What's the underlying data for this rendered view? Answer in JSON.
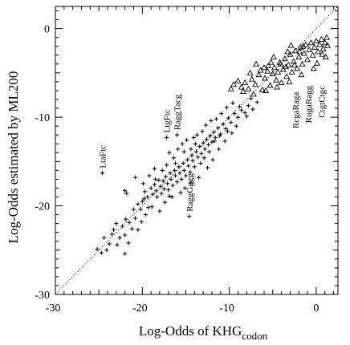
{
  "chart_data": {
    "type": "scatter",
    "xlabel": "Log-Odds of KHG",
    "xlabel_sub": "codon",
    "ylabel": "Log-Odds estimated by ML200",
    "xlim": [
      -30,
      2.5
    ],
    "ylim": [
      -30,
      2.5
    ],
    "x_major_ticks": [
      -30,
      -20,
      -10,
      0
    ],
    "y_major_ticks": [
      -30,
      -20,
      -10,
      0
    ],
    "x_tick_labels": [
      "-30",
      "-20",
      "-10",
      "0"
    ],
    "y_tick_labels": [
      "-30",
      "-20",
      "-10",
      "0"
    ],
    "grid": false,
    "reference_line": {
      "style": "dotted",
      "x": [
        -30,
        2.5
      ],
      "y": [
        -30,
        2.5
      ]
    },
    "annotations": [
      {
        "text": "LtaFtc",
        "x": -24.6,
        "y": -16.3
      },
      {
        "text": "LtgFtc",
        "x": -17.2,
        "y": -12.3
      },
      {
        "text": "RaggTacg",
        "x": -16.0,
        "y": -12.0
      },
      {
        "text": "RaggGggg",
        "x": -14.6,
        "y": -21.2
      },
      {
        "text": "RcgaRaga",
        "x": -2.4,
        "y": -11.8
      },
      {
        "text": "RugaRagg",
        "x": -0.9,
        "y": -11.2
      },
      {
        "text": "CtgtCtgc",
        "x": 0.6,
        "y": -10.6
      }
    ],
    "series": [
      {
        "marker": "plus",
        "points": [
          [
            -25.2,
            -24.9
          ],
          [
            -24.7,
            -25.3
          ],
          [
            -24.4,
            -23.6
          ],
          [
            -24.1,
            -25.0
          ],
          [
            -23.8,
            -24.3
          ],
          [
            -23.5,
            -23.2
          ],
          [
            -23.3,
            -22.7
          ],
          [
            -22.9,
            -24.4
          ],
          [
            -22.6,
            -23.6
          ],
          [
            -22.3,
            -22.3
          ],
          [
            -22.0,
            -23.3
          ],
          [
            -22.0,
            -25.4
          ],
          [
            -21.9,
            -21.5
          ],
          [
            -21.5,
            -21.9
          ],
          [
            -21.2,
            -22.6
          ],
          [
            -21.0,
            -20.4
          ],
          [
            -20.8,
            -21.4
          ],
          [
            -20.5,
            -19.8
          ],
          [
            -20.2,
            -20.4
          ],
          [
            -20.0,
            -19.5
          ],
          [
            -19.7,
            -18.4
          ],
          [
            -19.4,
            -19.0
          ],
          [
            -19.3,
            -20.2
          ],
          [
            -19.0,
            -18.0
          ],
          [
            -18.8,
            -18.7
          ],
          [
            -18.6,
            -17.6
          ],
          [
            -18.4,
            -18.3
          ],
          [
            -18.3,
            -19.0
          ],
          [
            -18.1,
            -17.1
          ],
          [
            -17.9,
            -17.8
          ],
          [
            -17.8,
            -18.6
          ],
          [
            -17.6,
            -17.2
          ],
          [
            -17.5,
            -18.1
          ],
          [
            -17.3,
            -16.7
          ],
          [
            -17.1,
            -17.5
          ],
          [
            -17.0,
            -18.2
          ],
          [
            -16.8,
            -16.3
          ],
          [
            -16.7,
            -17.0
          ],
          [
            -16.5,
            -17.7
          ],
          [
            -16.3,
            -16.0
          ],
          [
            -16.2,
            -16.6
          ],
          [
            -16.0,
            -17.3
          ],
          [
            -15.8,
            -15.6
          ],
          [
            -15.7,
            -16.3
          ],
          [
            -15.5,
            -17.0
          ],
          [
            -15.3,
            -15.2
          ],
          [
            -15.2,
            -16.0
          ],
          [
            -15.0,
            -16.6
          ],
          [
            -14.8,
            -14.8
          ],
          [
            -14.7,
            -15.5
          ],
          [
            -14.5,
            -16.2
          ],
          [
            -14.3,
            -14.3
          ],
          [
            -14.2,
            -14.9
          ],
          [
            -14.0,
            -15.6
          ],
          [
            -13.8,
            -13.9
          ],
          [
            -13.6,
            -14.5
          ],
          [
            -13.4,
            -13.3
          ],
          [
            -13.2,
            -14.1
          ],
          [
            -13.0,
            -12.9
          ],
          [
            -12.8,
            -13.6
          ],
          [
            -12.6,
            -12.5
          ],
          [
            -12.4,
            -13.1
          ],
          [
            -12.2,
            -12.1
          ],
          [
            -12.0,
            -12.8
          ],
          [
            -11.8,
            -11.7
          ],
          [
            -11.6,
            -12.3
          ],
          [
            -11.3,
            -11.2
          ],
          [
            -11.0,
            -11.9
          ],
          [
            -10.7,
            -10.8
          ],
          [
            -10.4,
            -11.3
          ],
          [
            -10.1,
            -10.1
          ],
          [
            -9.8,
            -10.6
          ],
          [
            -9.4,
            -9.6
          ],
          [
            -9.0,
            -10.0
          ],
          [
            -8.6,
            -9.2
          ],
          [
            -8.2,
            -9.5
          ],
          [
            -7.8,
            -8.7
          ],
          [
            -7.3,
            -9.1
          ],
          [
            -6.8,
            -8.3
          ],
          [
            -22.0,
            -18.3
          ],
          [
            -21.8,
            -18.6
          ],
          [
            -20.5,
            -22.7
          ],
          [
            -19.9,
            -17.5
          ],
          [
            -19.2,
            -16.6
          ],
          [
            -18.6,
            -15.8
          ],
          [
            -17.2,
            -15.4
          ],
          [
            -16.9,
            -14.0
          ],
          [
            -16.4,
            -14.6
          ],
          [
            -15.9,
            -13.6
          ],
          [
            -15.4,
            -13.0
          ],
          [
            -14.9,
            -12.6
          ],
          [
            -14.1,
            -12.3
          ],
          [
            -13.7,
            -12.0
          ],
          [
            -13.1,
            -11.6
          ],
          [
            -12.7,
            -10.9
          ],
          [
            -12.1,
            -10.4
          ],
          [
            -11.5,
            -10.2
          ],
          [
            -10.9,
            -9.6
          ],
          [
            -10.3,
            -8.9
          ],
          [
            -9.6,
            -8.4
          ],
          [
            -16.6,
            -19.0
          ],
          [
            -15.6,
            -18.5
          ],
          [
            -14.4,
            -17.4
          ],
          [
            -13.5,
            -16.8
          ],
          [
            -12.5,
            -15.7
          ],
          [
            -11.9,
            -14.8
          ],
          [
            -11.2,
            -13.6
          ],
          [
            -10.5,
            -12.7
          ],
          [
            -9.7,
            -11.8
          ],
          [
            -9.2,
            -11.0
          ],
          [
            -18.0,
            -20.6
          ],
          [
            -17.4,
            -19.6
          ],
          [
            -20.8,
            -16.8
          ],
          [
            -19.6,
            -21.0
          ],
          [
            -15.1,
            -18.0
          ],
          [
            -13.9,
            -13.0
          ],
          [
            -12.9,
            -14.6
          ],
          [
            -11.7,
            -12.7
          ],
          [
            -24.6,
            -16.3
          ],
          [
            -17.2,
            -12.3
          ],
          [
            -16.0,
            -12.0
          ],
          [
            -14.6,
            -21.2
          ],
          [
            -23.0,
            -22.0
          ],
          [
            -21.6,
            -24.2
          ],
          [
            -20.1,
            -21.8
          ],
          [
            -18.9,
            -20.1
          ],
          [
            -16.9,
            -18.9
          ],
          [
            -15.2,
            -13.9
          ],
          [
            -14.4,
            -13.6
          ],
          [
            -13.3,
            -15.2
          ],
          [
            -12.3,
            -13.9
          ],
          [
            -11.1,
            -12.1
          ],
          [
            -10.2,
            -11.6
          ],
          [
            -8.8,
            -8.8
          ],
          [
            -8.0,
            -9.9
          ],
          [
            -7.5,
            -7.9
          ],
          [
            -18.5,
            -17.0
          ],
          [
            -17.7,
            -16.0
          ],
          [
            -16.2,
            -15.2
          ],
          [
            -19.8,
            -19.2
          ]
        ]
      },
      {
        "marker": "triangle",
        "points": [
          [
            -9.5,
            -6.3
          ],
          [
            -9.0,
            -5.9
          ],
          [
            -8.6,
            -6.6
          ],
          [
            -8.2,
            -6.1
          ],
          [
            -7.8,
            -6.8
          ],
          [
            -7.4,
            -5.7
          ],
          [
            -7.0,
            -6.3
          ],
          [
            -6.6,
            -5.2
          ],
          [
            -6.2,
            -6.9
          ],
          [
            -5.9,
            -5.6
          ],
          [
            -5.6,
            -4.8
          ],
          [
            -5.3,
            -6.4
          ],
          [
            -5.0,
            -5.1
          ],
          [
            -4.8,
            -4.4
          ],
          [
            -4.6,
            -5.8
          ],
          [
            -4.4,
            -4.9
          ],
          [
            -4.2,
            -3.8
          ],
          [
            -4.0,
            -6.1
          ],
          [
            -3.8,
            -4.6
          ],
          [
            -3.6,
            -3.4
          ],
          [
            -3.4,
            -5.4
          ],
          [
            -3.2,
            -4.1
          ],
          [
            -3.0,
            -2.9
          ],
          [
            -2.8,
            -4.9
          ],
          [
            -2.6,
            -3.7
          ],
          [
            -2.4,
            -2.5
          ],
          [
            -2.2,
            -4.5
          ],
          [
            -2.0,
            -3.2
          ],
          [
            -1.8,
            -2.1
          ],
          [
            -1.6,
            -4.0
          ],
          [
            -1.4,
            -2.8
          ],
          [
            -1.2,
            -1.8
          ],
          [
            -1.0,
            -3.5
          ],
          [
            -0.8,
            -2.4
          ],
          [
            -0.6,
            -1.6
          ],
          [
            -0.4,
            -3.0
          ],
          [
            -0.2,
            -2.1
          ],
          [
            0.0,
            -1.4
          ],
          [
            0.2,
            -2.6
          ],
          [
            0.4,
            -1.8
          ],
          [
            0.6,
            -1.2
          ],
          [
            0.8,
            -2.3
          ],
          [
            1.0,
            -1.6
          ],
          [
            1.2,
            -1.0
          ],
          [
            -5.2,
            -3.8
          ],
          [
            -4.9,
            -3.2
          ],
          [
            -3.3,
            -2.6
          ],
          [
            -2.9,
            -1.9
          ],
          [
            -6.4,
            -4.7
          ],
          [
            -6.9,
            -4.0
          ],
          [
            -7.6,
            -5.0
          ],
          [
            -5.5,
            -4.2
          ],
          [
            -4.1,
            -4.0
          ],
          [
            -3.5,
            -4.3
          ],
          [
            -2.5,
            -4.1
          ],
          [
            -1.9,
            -2.6
          ],
          [
            -1.5,
            -2.0
          ],
          [
            0.1,
            -3.9
          ],
          [
            0.7,
            -2.9
          ],
          [
            1.3,
            -1.9
          ],
          [
            -8.4,
            -7.1
          ],
          [
            -7.2,
            -7.4
          ],
          [
            -5.8,
            -7.0
          ],
          [
            -4.5,
            -6.6
          ],
          [
            -3.1,
            -6.0
          ],
          [
            -1.7,
            -5.2
          ],
          [
            -0.3,
            -4.5
          ],
          [
            1.1,
            -3.2
          ],
          [
            -9.8,
            -6.8
          ],
          [
            -6.0,
            -4.4
          ]
        ]
      }
    ]
  }
}
